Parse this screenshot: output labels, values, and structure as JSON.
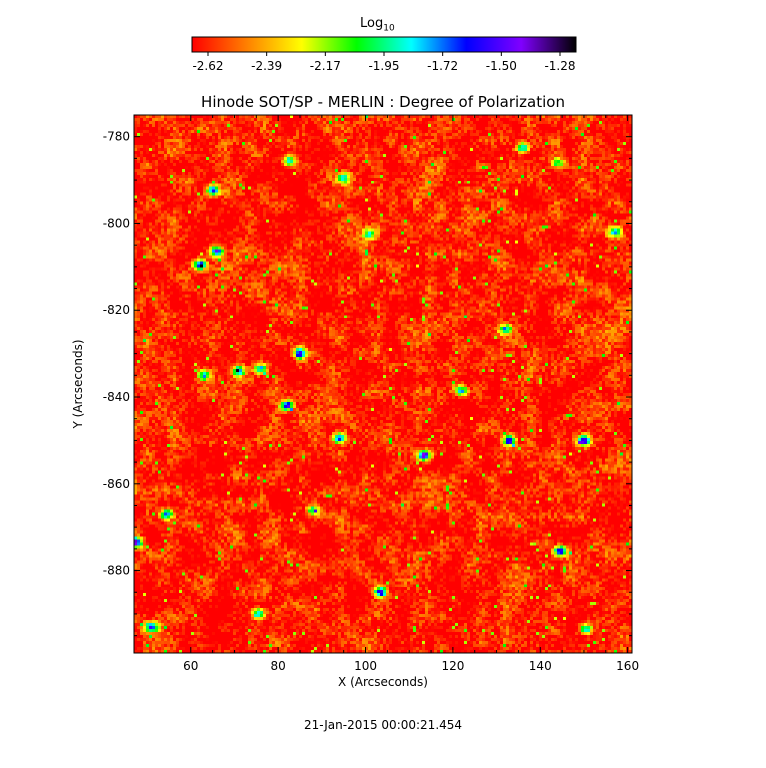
{
  "chart_data": {
    "type": "heatmap",
    "title": "Hinode SOT/SP - MERLIN : Degree of Polarization",
    "xlabel": "X (Arcseconds)",
    "ylabel": "Y (Arcseconds)",
    "xlim": [
      47,
      161
    ],
    "ylim": [
      -899,
      -775
    ],
    "xticks": [
      60,
      80,
      100,
      120,
      140,
      160
    ],
    "yticks": [
      -780,
      -800,
      -820,
      -840,
      -860,
      -880
    ],
    "colorbar": {
      "label_main": "Log",
      "label_sub": "10",
      "ticks": [
        "-2.62",
        "-2.39",
        "-2.17",
        "-1.95",
        "-1.72",
        "-1.50",
        "-1.28"
      ],
      "range": [
        -2.62,
        -1.28
      ],
      "colormap": [
        "#ff0000",
        "#ff8000",
        "#ffff00",
        "#00ff00",
        "#00ffff",
        "#0000ff",
        "#8000ff",
        "#000000"
      ]
    },
    "background_level": -2.58,
    "hotspots": [
      {
        "x": 113.5,
        "y": -853.5,
        "value": -1.35
      },
      {
        "x": 66,
        "y": -806.5,
        "value": -1.42
      },
      {
        "x": 144.5,
        "y": -875.5,
        "value": -1.45
      },
      {
        "x": 133,
        "y": -850,
        "value": -1.48
      },
      {
        "x": 150,
        "y": -850,
        "value": -1.5
      },
      {
        "x": 82,
        "y": -842,
        "value": -1.55
      },
      {
        "x": 85,
        "y": -830,
        "value": -1.5
      },
      {
        "x": 94,
        "y": -849.5,
        "value": -1.55
      },
      {
        "x": 103.5,
        "y": -885,
        "value": -1.5
      },
      {
        "x": 65,
        "y": -792.5,
        "value": -1.6
      },
      {
        "x": 62,
        "y": -809.5,
        "value": -1.6
      },
      {
        "x": 54.5,
        "y": -867,
        "value": -1.62
      },
      {
        "x": 47.5,
        "y": -873.5,
        "value": -1.55
      },
      {
        "x": 51,
        "y": -893,
        "value": -1.65
      },
      {
        "x": 75.5,
        "y": -890,
        "value": -1.7
      },
      {
        "x": 136,
        "y": -782.5,
        "value": -1.75
      },
      {
        "x": 82.5,
        "y": -785.5,
        "value": -1.75
      },
      {
        "x": 71,
        "y": -834,
        "value": -1.8
      },
      {
        "x": 63,
        "y": -835,
        "value": -1.75
      },
      {
        "x": 76,
        "y": -833.5,
        "value": -1.8
      },
      {
        "x": 122,
        "y": -838.5,
        "value": -1.8
      },
      {
        "x": 150.5,
        "y": -893.5,
        "value": -1.75
      },
      {
        "x": 157,
        "y": -802,
        "value": -1.9
      },
      {
        "x": 101,
        "y": -802.5,
        "value": -1.95
      },
      {
        "x": 95,
        "y": -789.5,
        "value": -1.9
      },
      {
        "x": 132,
        "y": -824.5,
        "value": -1.85
      },
      {
        "x": 144,
        "y": -786,
        "value": -1.9
      },
      {
        "x": 88,
        "y": -866,
        "value": -1.9
      }
    ]
  },
  "footer": {
    "timestamp": "21-Jan-2015 00:00:21.454"
  }
}
